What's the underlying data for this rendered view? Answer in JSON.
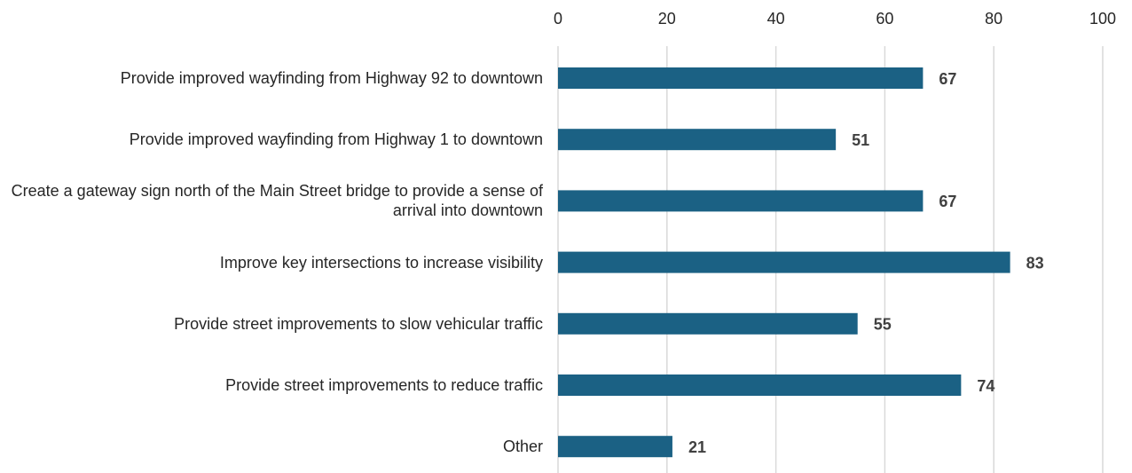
{
  "chart_data": {
    "type": "bar",
    "orientation": "horizontal",
    "categories": [
      "Provide improved wayfinding from Highway 92 to downtown",
      "Provide improved wayfinding from Highway 1 to downtown",
      "Create a gateway sign north of the Main Street bridge to provide a sense of arrival into downtown",
      "Improve key intersections to increase visibility",
      "Provide street improvements to slow vehicular traffic",
      "Provide street improvements to reduce traffic",
      "Other"
    ],
    "values": [
      67,
      51,
      67,
      83,
      55,
      74,
      21
    ],
    "color": "#1b6184",
    "xlim": [
      0,
      100
    ],
    "xticks": [
      0,
      20,
      40,
      60,
      80,
      100
    ],
    "grid": true
  }
}
